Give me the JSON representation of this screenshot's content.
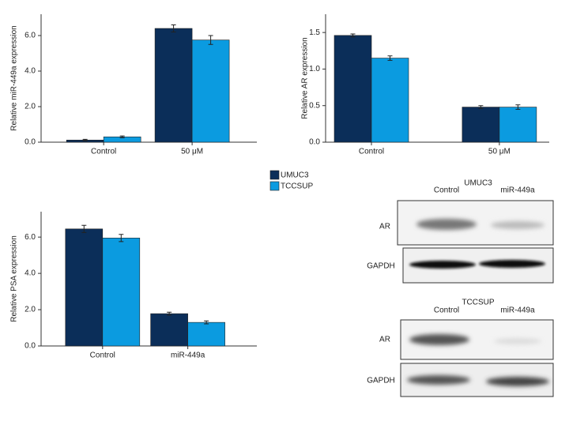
{
  "chart_data": [
    {
      "type": "bar",
      "y_label": "Relative miR-449a expression",
      "categories": [
        "Control",
        "50 μM"
      ],
      "series": [
        {
          "name": "UMUC3",
          "color": "#0b2e59",
          "values": [
            0.12,
            6.4
          ],
          "errors": [
            0.04,
            0.2
          ]
        },
        {
          "name": "TCCSUP",
          "color": "#0b9be0",
          "values": [
            0.3,
            5.75
          ],
          "errors": [
            0.05,
            0.25
          ]
        }
      ],
      "ylim": [
        0,
        7.2
      ],
      "yticks": [
        {
          "value": 0,
          "label": "0.0"
        },
        {
          "value": 2,
          "label": "2.0"
        },
        {
          "value": 4,
          "label": "4.0"
        },
        {
          "value": 6,
          "label": "6.0"
        }
      ]
    },
    {
      "type": "bar",
      "y_label": "Relative AR expression",
      "categories": [
        "Control",
        "50 μM"
      ],
      "series": [
        {
          "name": "UMUC3",
          "color": "#0b2e59",
          "values": [
            1.46,
            0.48
          ],
          "errors": [
            0.02,
            0.02
          ]
        },
        {
          "name": "TCCSUP",
          "color": "#0b9be0",
          "values": [
            1.15,
            0.48
          ],
          "errors": [
            0.03,
            0.03
          ]
        }
      ],
      "ylim": [
        0,
        1.75
      ],
      "yticks": [
        {
          "value": 0,
          "label": "0.0"
        },
        0.5,
        {
          "value": 1,
          "label": "1.0"
        },
        1.5
      ]
    },
    {
      "type": "bar",
      "y_label": "Relative PSA expression",
      "categories": [
        "Control",
        "miR-449a"
      ],
      "series": [
        {
          "name": "UMUC3",
          "color": "#0b2e59",
          "values": [
            6.45,
            1.78
          ],
          "errors": [
            0.2,
            0.08
          ]
        },
        {
          "name": "TCCSUP",
          "color": "#0b9be0",
          "values": [
            5.95,
            1.3
          ],
          "errors": [
            0.2,
            0.08
          ]
        }
      ],
      "ylim": [
        0,
        7.4
      ],
      "yticks": [
        {
          "value": 0,
          "label": "0.0"
        },
        {
          "value": 2,
          "label": "2.0"
        },
        {
          "value": 4,
          "label": "4.0"
        },
        {
          "value": 6,
          "label": "6.0"
        }
      ]
    }
  ],
  "blots": [
    {
      "title": "UMUC3",
      "columns": [
        "Control",
        "miR-449a"
      ],
      "rows": [
        "AR",
        "GAPDH"
      ]
    },
    {
      "title": "TCCSUP",
      "columns": [
        "Control",
        "miR-449a"
      ],
      "rows": [
        "AR",
        "GAPDH"
      ]
    }
  ]
}
